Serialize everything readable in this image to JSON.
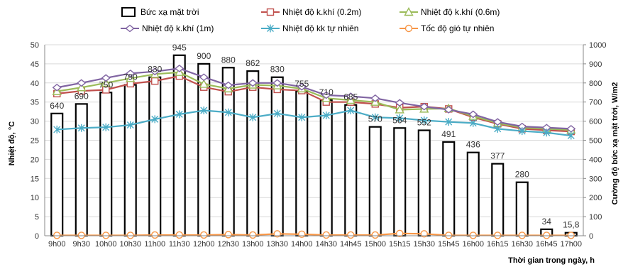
{
  "chart_data": {
    "type": "bar",
    "categories": [
      "9h00",
      "9h30",
      "10h00",
      "10h30",
      "11h00",
      "11h30",
      "12h00",
      "12h30",
      "13h00",
      "13h30",
      "14h00",
      "14h30",
      "14h45",
      "15h00",
      "15h15",
      "15h30",
      "15h45",
      "16h00",
      "16h15",
      "16h30",
      "16h45",
      "17h00"
    ],
    "xlabel": "Thời  gian trong ngày, h",
    "ylabel": "Nhiệt độ, °C",
    "y2label": "Cường độ bức xạ mặt trời, W/m2",
    "ylim": [
      0,
      50
    ],
    "y2lim": [
      0,
      1000
    ],
    "yticks": [
      "0",
      "5",
      "10",
      "15",
      "20",
      "25",
      "30",
      "35",
      "40",
      "45",
      "50"
    ],
    "y2ticks": [
      "0",
      "100",
      "200",
      "300",
      "400",
      "500",
      "600",
      "700",
      "800",
      "900",
      "1000"
    ],
    "bars": {
      "name": "Bức xạ mặt trời",
      "axis": "right",
      "values": [
        640,
        690,
        750,
        790,
        830,
        945,
        900,
        880,
        862,
        830,
        755,
        710,
        685,
        570,
        564,
        552,
        491,
        436,
        377,
        280,
        34,
        15.8
      ],
      "labels": [
        "640",
        "690",
        "750",
        "790",
        "830",
        "945",
        "900",
        "880",
        "862",
        "830",
        "755",
        "710",
        "685",
        "570",
        "564",
        "552",
        "491",
        "436",
        "377",
        "280",
        "34",
        "15,8"
      ]
    },
    "series": [
      {
        "name": "Nhiệt độ k.khí (0.2m)",
        "axis": "left",
        "color": "#c0504d",
        "marker": "square",
        "values": [
          37.2,
          37.9,
          38.2,
          39.8,
          40.5,
          41.8,
          38.9,
          37.7,
          38.9,
          38.3,
          38.0,
          35.0,
          35.0,
          34.5,
          33.5,
          33.8,
          33.2,
          31.0,
          29.3,
          28.0,
          27.6,
          27.3
        ]
      },
      {
        "name": "Nhiệt độ k.khí (0.6m)",
        "axis": "left",
        "color": "#9bbb59",
        "marker": "triangle",
        "values": [
          37.8,
          38.8,
          40.0,
          41.2,
          42.3,
          42.8,
          39.7,
          38.5,
          39.5,
          39.3,
          38.5,
          36.0,
          35.5,
          35.0,
          33.0,
          33.2,
          33.3,
          31.3,
          29.5,
          28.3,
          28.0,
          27.7
        ]
      },
      {
        "name": "Nhiệt độ k.khí (1m)",
        "axis": "left",
        "color": "#8064a2",
        "marker": "diamond",
        "values": [
          38.8,
          40.0,
          41.3,
          42.5,
          43.0,
          43.8,
          41.5,
          39.4,
          40.0,
          40.0,
          39.0,
          36.8,
          36.5,
          36.0,
          34.8,
          33.8,
          33.0,
          31.8,
          29.8,
          28.6,
          28.3,
          28.0
        ]
      },
      {
        "name": "Nhiệt độ kk tự nhiên",
        "axis": "left",
        "color": "#4bacc6",
        "marker": "cross",
        "values": [
          27.8,
          28.2,
          28.4,
          29.0,
          30.5,
          31.8,
          32.8,
          32.3,
          31.0,
          32.0,
          31.0,
          31.5,
          32.8,
          31.0,
          30.8,
          30.2,
          29.8,
          29.5,
          28.0,
          27.4,
          27.0,
          26.2
        ]
      },
      {
        "name": "Tốc độ gió tự nhiên",
        "axis": "left",
        "color": "#f79646",
        "marker": "circle",
        "values": [
          0.1,
          0.1,
          0.1,
          0.1,
          0.2,
          0.2,
          0.2,
          0.3,
          0.2,
          0.5,
          0.4,
          0.2,
          0.2,
          0.2,
          0.6,
          0.5,
          0.1,
          0.1,
          0.1,
          0.1,
          0.1,
          0.1
        ]
      }
    ],
    "legend_position": "top"
  }
}
